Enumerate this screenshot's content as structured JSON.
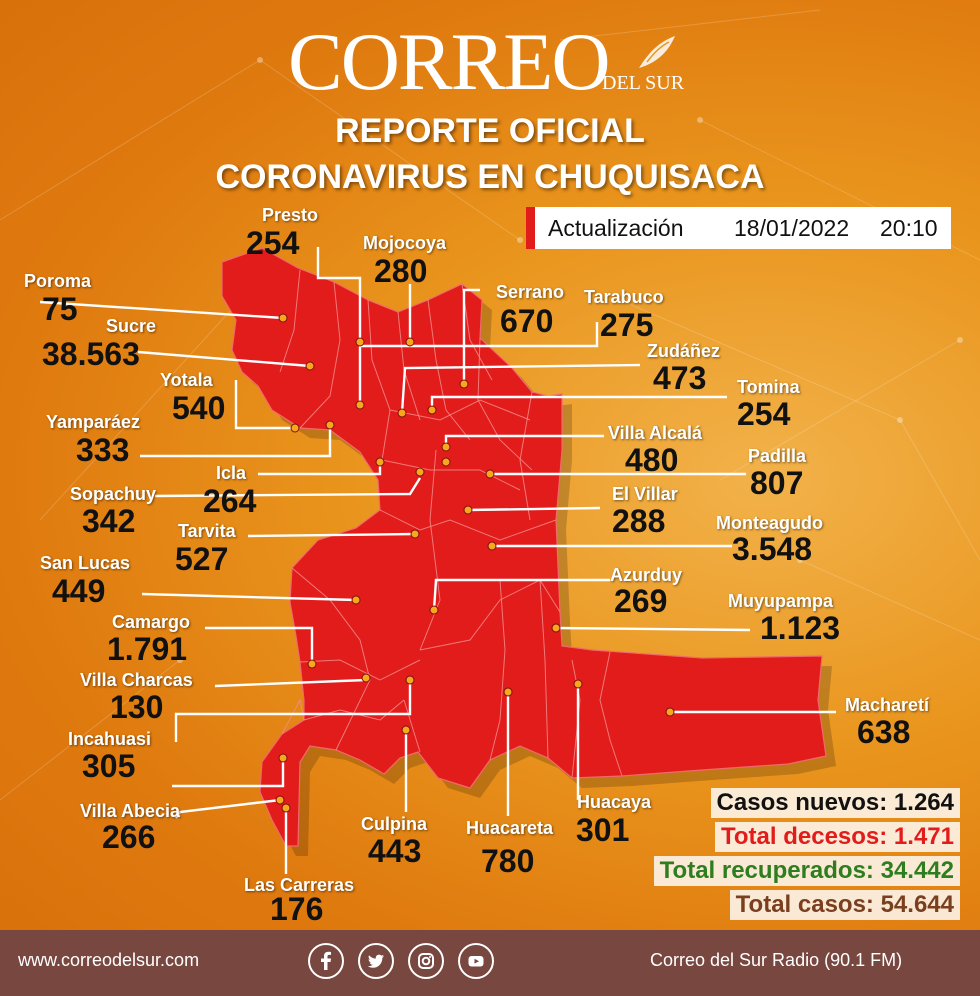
{
  "header": {
    "logo_main": "CORREO",
    "logo_sub": "DEL SUR",
    "title_line1": "REPORTE OFICIAL",
    "title_line2": "CORONAVIRUS EN CHUQUISACA"
  },
  "update": {
    "label": "Actualización",
    "date": "18/01/2022",
    "time": "20:10"
  },
  "municipalities": [
    {
      "name": "Presto",
      "value": "254"
    },
    {
      "name": "Mojocoya",
      "value": "280"
    },
    {
      "name": "Poroma",
      "value": "75"
    },
    {
      "name": "Serrano",
      "value": "670"
    },
    {
      "name": "Tarabuco",
      "value": "275"
    },
    {
      "name": "Sucre",
      "value": "38.563"
    },
    {
      "name": "Zudáñez",
      "value": "473"
    },
    {
      "name": "Yotala",
      "value": "540"
    },
    {
      "name": "Tomina",
      "value": "254"
    },
    {
      "name": "Yamparáez",
      "value": "333"
    },
    {
      "name": "Villa Alcalá",
      "value": "480"
    },
    {
      "name": "Padilla",
      "value": "807"
    },
    {
      "name": "Icla",
      "value": "264"
    },
    {
      "name": "Sopachuy",
      "value": "342"
    },
    {
      "name": "El Villar",
      "value": "288"
    },
    {
      "name": "Tarvita",
      "value": "527"
    },
    {
      "name": "Monteagudo",
      "value": "3.548"
    },
    {
      "name": "San Lucas",
      "value": "449"
    },
    {
      "name": "Azurduy",
      "value": "269"
    },
    {
      "name": "Camargo",
      "value": "1.791"
    },
    {
      "name": "Muyupampa",
      "value": "1.123"
    },
    {
      "name": "Villa Charcas",
      "value": "130"
    },
    {
      "name": "Macharetí",
      "value": "638"
    },
    {
      "name": "Incahuasi",
      "value": "305"
    },
    {
      "name": "Villa Abecia",
      "value": "266"
    },
    {
      "name": "Huacaya",
      "value": "301"
    },
    {
      "name": "Culpina",
      "value": "443"
    },
    {
      "name": "Huacareta",
      "value": "780"
    },
    {
      "name": "Las Carreras",
      "value": "176"
    }
  ],
  "totals": {
    "new_cases": "Casos nuevos: 1.264",
    "deaths": "Total decesos: 1.471",
    "recovered": "Total recuperados: 34.442",
    "total": "Total casos: 54.644"
  },
  "colors": {
    "background": "#e9951d",
    "map_fill": "#e21b1b",
    "footer": "#78473f",
    "new_cases": "#111111",
    "deaths": "#e21b1b",
    "recovered": "#2e7d1e",
    "total": "#7a3f1e"
  },
  "footer": {
    "website": "www.correodelsur.com",
    "radio": "Correo del Sur Radio (90.1 FM)",
    "social_icons": [
      "facebook-icon",
      "twitter-icon",
      "instagram-icon",
      "youtube-icon"
    ]
  }
}
